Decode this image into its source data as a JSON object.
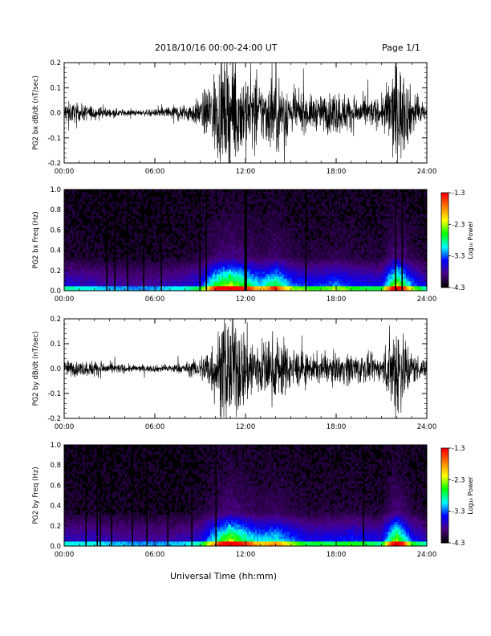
{
  "header": {
    "title": "2018/10/16  00:00-24:00 UT",
    "page": "Page 1/1"
  },
  "x_axis_label": "Universal Time (hh:mm)",
  "colorbar": {
    "label": "Log₁₀ Power",
    "ticks": [
      "-1.3",
      "-2.3",
      "-3.3",
      "-4.3"
    ],
    "range": [
      -4.3,
      -1.3
    ],
    "colors": [
      "#000000",
      "#4b0082",
      "#0000ff",
      "#00ffff",
      "#00ff00",
      "#ffff00",
      "#ff8000",
      "#ff0000"
    ]
  },
  "chart_data": [
    {
      "type": "line",
      "ylabel": "PG2 bx dB/dt (nT/sec)",
      "xlim": [
        0,
        24
      ],
      "ylim": [
        -0.2,
        0.2
      ],
      "xticks": [
        "00:00",
        "06:00",
        "12:00",
        "18:00",
        "24:00"
      ],
      "yticks": [
        "0.2",
        "0.1",
        "0.0",
        "-0.1",
        "-0.2"
      ],
      "activity_envelope": {
        "hours": [
          0,
          1,
          2,
          3,
          4,
          5,
          6,
          7,
          8,
          9,
          10,
          11,
          12,
          13,
          14,
          15,
          16,
          17,
          18,
          19,
          20,
          21,
          22,
          23,
          24
        ],
        "amplitude": [
          0.04,
          0.03,
          0.025,
          0.015,
          0.012,
          0.01,
          0.012,
          0.025,
          0.03,
          0.05,
          0.15,
          0.2,
          0.15,
          0.1,
          0.15,
          0.08,
          0.06,
          0.06,
          0.08,
          0.06,
          0.05,
          0.05,
          0.2,
          0.08,
          0.03
        ]
      }
    },
    {
      "type": "heatmap",
      "ylabel": "PG2 bx Freq (Hz)",
      "xlim": [
        0,
        24
      ],
      "ylim": [
        0,
        1.0
      ],
      "xticks": [
        "00:00",
        "06:00",
        "12:00",
        "18:00",
        "24:00"
      ],
      "yticks": [
        "1.0",
        "0.8",
        "0.6",
        "0.4",
        "0.2",
        "0.0"
      ],
      "zlim": [
        -4.3,
        -1.3
      ]
    },
    {
      "type": "line",
      "ylabel": "PG2 by dB/dt (nT/sec)",
      "xlim": [
        0,
        24
      ],
      "ylim": [
        -0.2,
        0.2
      ],
      "xticks": [
        "00:00",
        "06:00",
        "12:00",
        "18:00",
        "24:00"
      ],
      "yticks": [
        "0.2",
        "0.1",
        "0.0",
        "-0.1",
        "-0.2"
      ],
      "activity_envelope": {
        "hours": [
          0,
          1,
          2,
          3,
          4,
          5,
          6,
          7,
          8,
          9,
          10,
          11,
          12,
          13,
          14,
          15,
          16,
          17,
          18,
          19,
          20,
          21,
          22,
          23,
          24
        ],
        "amplitude": [
          0.03,
          0.025,
          0.03,
          0.02,
          0.015,
          0.012,
          0.012,
          0.015,
          0.02,
          0.04,
          0.12,
          0.2,
          0.14,
          0.1,
          0.12,
          0.08,
          0.05,
          0.05,
          0.05,
          0.06,
          0.05,
          0.04,
          0.2,
          0.06,
          0.025
        ]
      }
    },
    {
      "type": "heatmap",
      "ylabel": "PG2 by Freq (Hz)",
      "xlim": [
        0,
        24
      ],
      "ylim": [
        0,
        1.0
      ],
      "xticks": [
        "00:00",
        "06:00",
        "12:00",
        "18:00",
        "24:00"
      ],
      "yticks": [
        "1.0",
        "0.8",
        "0.6",
        "0.4",
        "0.2",
        "0.0"
      ],
      "zlim": [
        -4.3,
        -1.3
      ]
    }
  ]
}
